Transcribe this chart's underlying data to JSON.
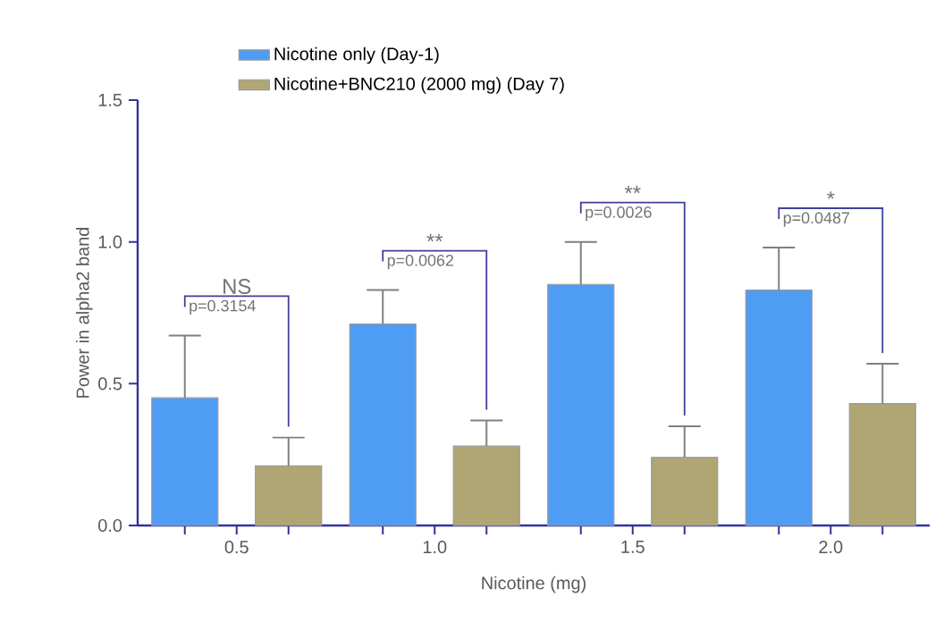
{
  "chart_data": {
    "type": "bar",
    "xlabel": "Nicotine (mg)",
    "ylabel": "Power in alpha2 band",
    "categories": [
      "0.5",
      "1.0",
      "1.5",
      "2.0"
    ],
    "series": [
      {
        "name": "Nicotine only (Day-1)",
        "color": "#4f9cf5",
        "values": [
          0.45,
          0.71,
          0.85,
          0.83
        ],
        "errors": [
          [
            0.45,
            0.67
          ],
          [
            0.71,
            0.83
          ],
          [
            0.85,
            1.0
          ],
          [
            0.83,
            0.98
          ]
        ]
      },
      {
        "name": "Nicotine+BNC210 (2000 mg) (Day 7)",
        "color": "#b0a674",
        "values": [
          0.21,
          0.28,
          0.24,
          0.43
        ],
        "errors": [
          [
            0.21,
            0.31
          ],
          [
            0.28,
            0.37
          ],
          [
            0.24,
            0.35
          ],
          [
            0.43,
            0.57
          ]
        ]
      }
    ],
    "ylim": [
      0,
      1.5
    ],
    "yticks": [
      {
        "value": 0,
        "label": "0.0"
      },
      0.5,
      {
        "value": 1,
        "label": "1.0"
      },
      1.5
    ],
    "legend": "top",
    "annotations": [
      "NS",
      "p=0.3154",
      "**",
      "p=0.0062",
      "**",
      "p=0.0026",
      "*",
      "p=0.0487"
    ]
  }
}
